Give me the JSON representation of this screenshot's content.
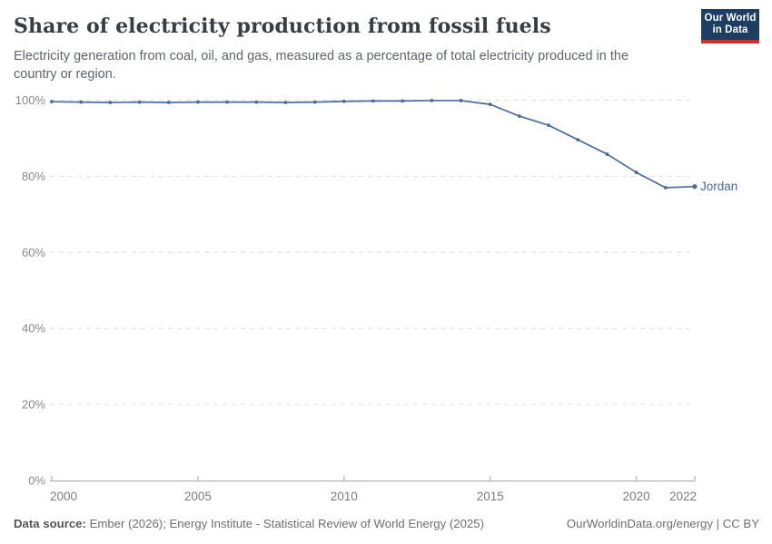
{
  "header": {
    "title": "Share of electricity production from fossil fuels",
    "subtitle_lines": [
      "Electricity generation from coal, oil, and gas, measured as a percentage of total electricity produced in the",
      "country or region."
    ],
    "logo": {
      "line1": "Our World",
      "line2": "in Data",
      "bg_color": "#1d3d63",
      "accent_color": "#c7342c"
    }
  },
  "colors": {
    "line": "#4c6a9c",
    "grid": "#e0e0e0",
    "axis": "#a5a5a5",
    "y_tick_label": "#898989",
    "x_tick_label": "#7b7b7b"
  },
  "chart_data": {
    "type": "line",
    "title": "Share of electricity production from fossil fuels",
    "xlabel": "",
    "ylabel": "",
    "xlim": [
      2000,
      2022
    ],
    "ylim": [
      0,
      100
    ],
    "x_ticks": [
      2000,
      2005,
      2010,
      2015,
      2020,
      2022
    ],
    "y_ticks": [
      0,
      20,
      40,
      60,
      80,
      100
    ],
    "y_tick_suffix": "%",
    "grid": "horizontal-dashed",
    "legend_position": "end-of-line-label",
    "series": [
      {
        "name": "Jordan",
        "color": "#4c6a9c",
        "x": [
          2000,
          2001,
          2002,
          2003,
          2004,
          2005,
          2006,
          2007,
          2008,
          2009,
          2010,
          2011,
          2012,
          2013,
          2014,
          2015,
          2016,
          2017,
          2018,
          2019,
          2020,
          2021,
          2022
        ],
        "values": [
          99.6,
          99.5,
          99.4,
          99.5,
          99.4,
          99.5,
          99.5,
          99.5,
          99.4,
          99.5,
          99.7,
          99.8,
          99.8,
          99.9,
          99.9,
          98.9,
          95.8,
          93.4,
          89.6,
          85.8,
          81.0,
          77.0,
          77.3
        ]
      }
    ]
  },
  "footer": {
    "source_label": "Data source:",
    "source_text": "Ember (2026); Energy Institute - Statistical Review of World Energy (2025)",
    "right_text": "OurWorldinData.org/energy | CC BY"
  }
}
